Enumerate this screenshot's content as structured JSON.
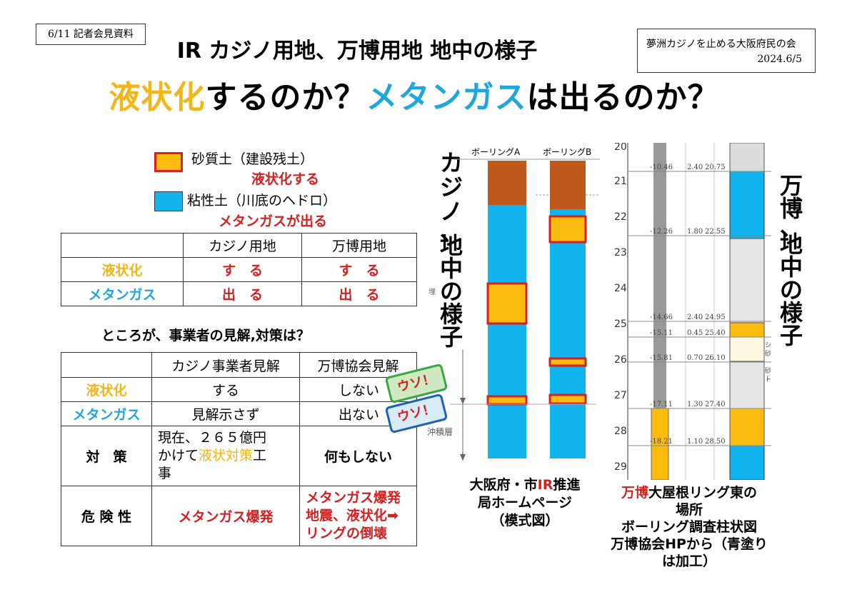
{
  "header": {
    "date_tag": "6/11 記者会見資料",
    "title": "IR カジノ用地、万博用地 地中の様子",
    "org": "夢洲カジノを止める大阪府民の会",
    "date": "2024.6/5",
    "headline": {
      "part1": "液状化",
      "part2": "するのか？",
      "part3": "メタンガス",
      "part4": "は出るのか？"
    }
  },
  "legend": {
    "sand_label": "砂質土（建設残土）",
    "sand_effect": "液状化する",
    "clay_label": "粘性土（川底のヘドロ）",
    "clay_effect": "メタンガスが出る",
    "colors": {
      "sand": "#fbbc0f",
      "sand_border": "#d62020",
      "clay": "#12b4ef"
    }
  },
  "table1": {
    "headers": [
      "",
      "カジノ用地",
      "万博用地"
    ],
    "rows": [
      {
        "label": "液状化",
        "casino": "す　る",
        "expo": "す　る"
      },
      {
        "label": "メタンガス",
        "casino": "出　る",
        "expo": "出　る"
      }
    ]
  },
  "question": "ところが、事業者の見解,対策は？",
  "table2": {
    "headers": [
      "",
      "カジノ事業者見解",
      "万博協会見解"
    ],
    "rows": [
      {
        "label": "液状化",
        "casino": "する",
        "expo": "しない"
      },
      {
        "label": "メタンガス",
        "casino": "見解示さず",
        "expo": "出ない"
      },
      {
        "label": "対　策",
        "casino_1": "現在、２６５億円",
        "casino_2": "かけて",
        "casino_3": "液状対策",
        "casino_4": "工",
        "casino_5": "事",
        "expo": "何もしない"
      },
      {
        "label": "危 険 性",
        "casino": "メタンガス爆発",
        "expo_1": "メタンガス爆発",
        "expo_2": "地震、液状化➡",
        "expo_3": "リングの倒壊"
      }
    ],
    "lie_stamp": "ウソ！"
  },
  "casino_diagram": {
    "side_title": [
      "カ",
      "ジ",
      "ノ",
      "、",
      "地",
      "中",
      "の",
      "様",
      "子"
    ],
    "boring_a": "ボーリングA",
    "boring_b": "ボーリングB",
    "stratum_label": "沖積層",
    "mini_label": "埋",
    "caption": [
      "大阪府・市",
      "IR",
      "推進",
      "局ホームページ",
      "（模式図）"
    ]
  },
  "expo_diagram": {
    "side_title": [
      "万",
      "博",
      "、",
      "地",
      "中",
      "の",
      "様",
      "子"
    ],
    "depth_ticks": [
      "20",
      "21",
      "22",
      "23",
      "24",
      "25",
      "26",
      "27",
      "28",
      "29"
    ],
    "rows": [
      {
        "elev": "-10.46",
        "thick": "2.40",
        "depth": "20.75"
      },
      {
        "elev": "-12.26",
        "thick": "1.80",
        "depth": "22.55"
      },
      {
        "elev": "-14.66",
        "thick": "2.40",
        "depth": "24.95"
      },
      {
        "elev": "-15.11",
        "thick": "0.45",
        "depth": "25.40"
      },
      {
        "elev": "-15.81",
        "thick": "0.70",
        "depth": "26.10"
      },
      {
        "elev": "-17.11",
        "thick": "1.30",
        "depth": "27.40"
      },
      {
        "elev": "-18.21",
        "thick": "1.10",
        "depth": "28.50"
      }
    ],
    "soil_marks": [
      "シ",
      "砂",
      "砂",
      "ト"
    ],
    "caption": {
      "part1": "万博",
      "part2": "大屋根リング東の",
      "line2": "場所",
      "line3": "ボーリング調査柱状図",
      "line4": "万博協会HPから（青塗り",
      "line5": "は加工）"
    }
  }
}
